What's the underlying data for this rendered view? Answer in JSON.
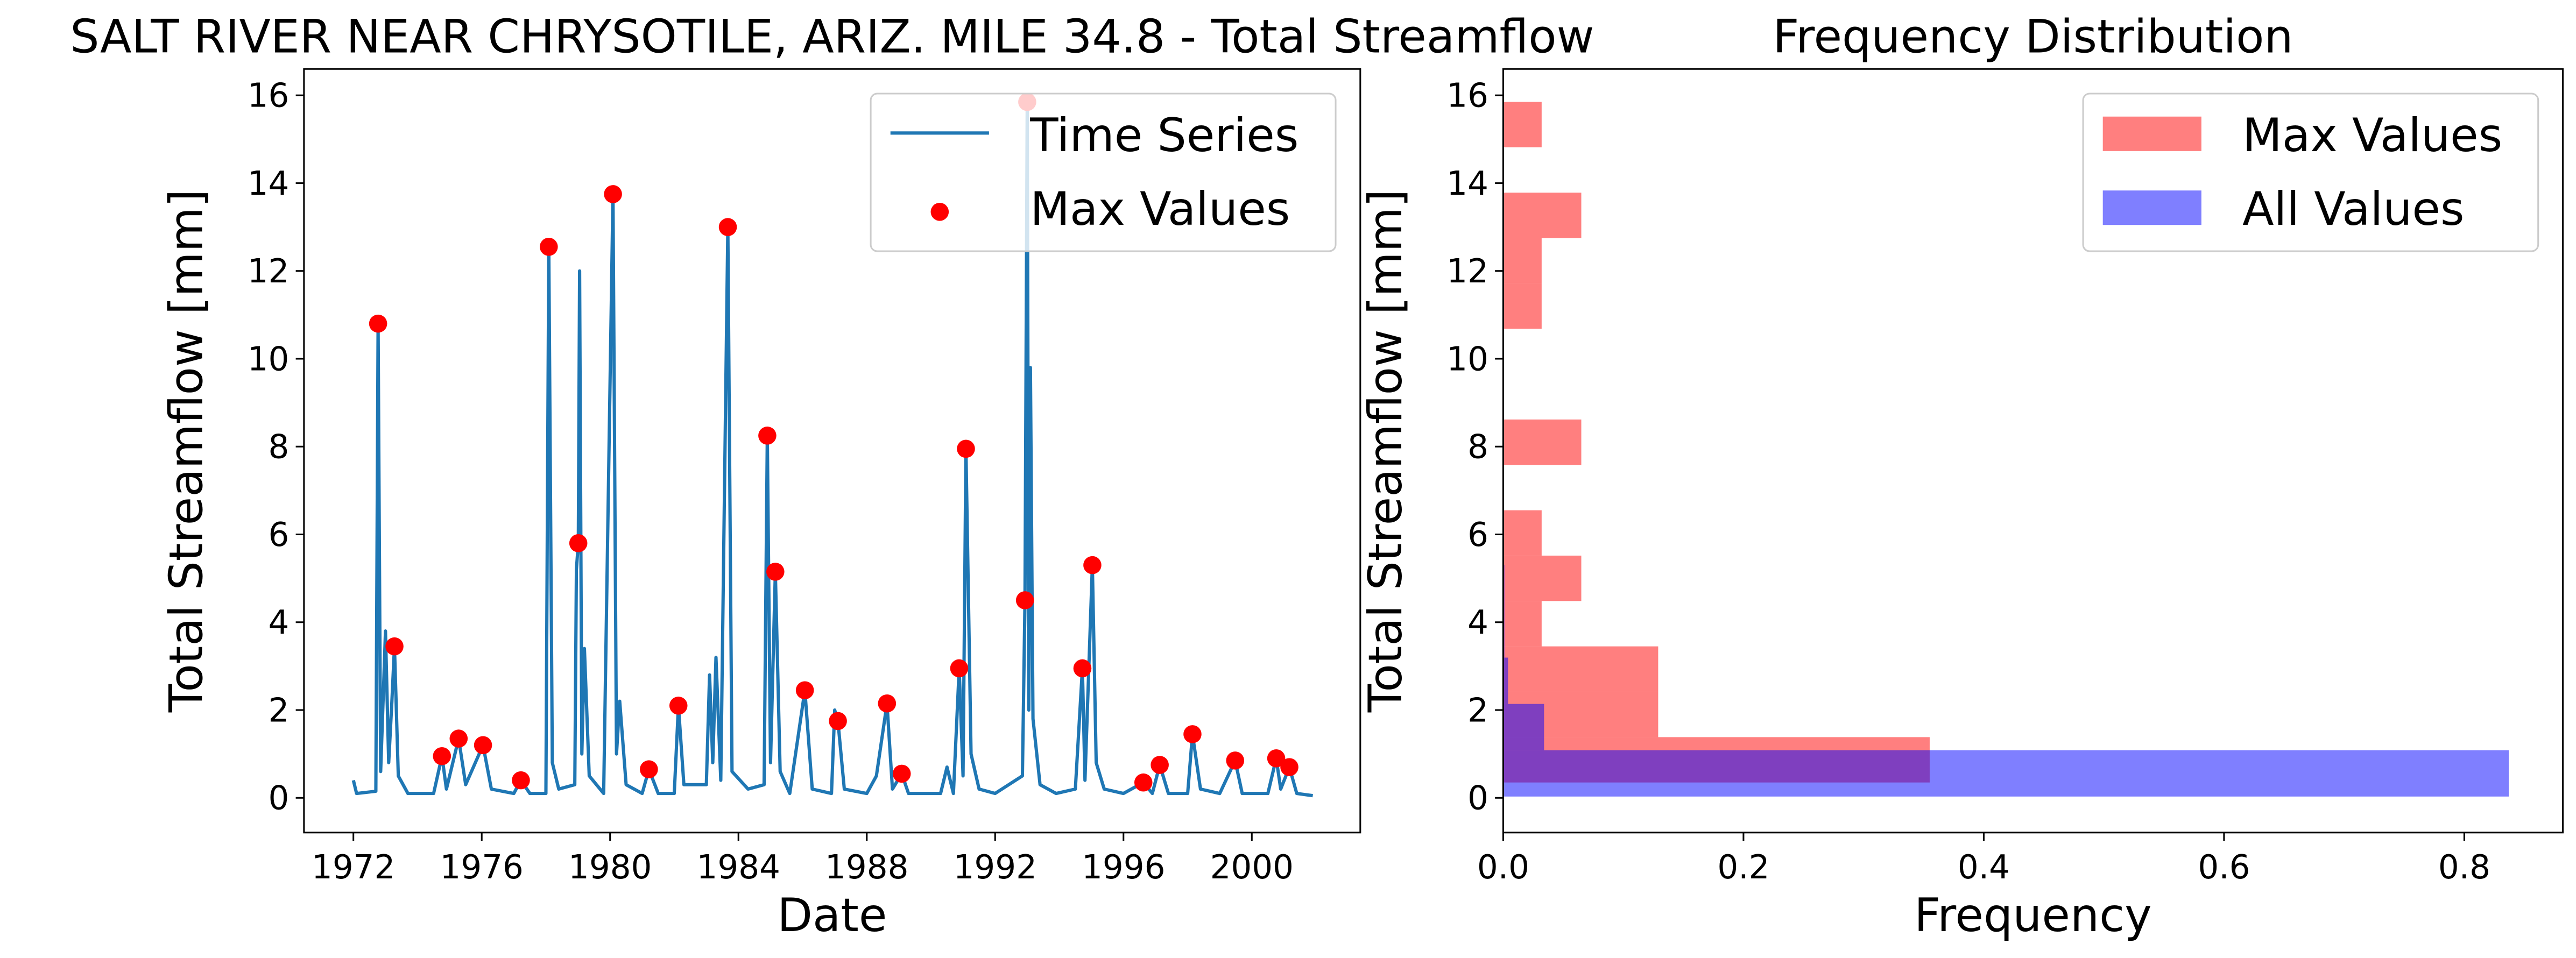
{
  "chart_data": [
    {
      "type": "line",
      "title": "SALT RIVER NEAR CHRYSOTILE, ARIZ. MILE 34.8 - Total Streamflow",
      "xlabel": "Date",
      "ylabel": "Total Streamflow [mm]",
      "xlim": [
        1970.46,
        2003.38
      ],
      "ylim": [
        -0.79,
        16.6
      ],
      "xticks": [
        1972,
        1976,
        1980,
        1984,
        1988,
        1992,
        1996,
        2000
      ],
      "yticks": [
        0,
        2,
        4,
        6,
        8,
        10,
        12,
        14,
        16
      ],
      "grid": false,
      "legend": "upper right",
      "series": [
        {
          "name": "Time Series",
          "type": "line",
          "color": "#1f77b4",
          "x": [
            1972.0,
            1972.1,
            1972.7,
            1972.77,
            1972.85,
            1973.0,
            1973.1,
            1973.2,
            1973.28,
            1973.4,
            1973.7,
            1974.5,
            1974.76,
            1974.9,
            1975.28,
            1975.5,
            1976.04,
            1976.3,
            1977.0,
            1977.22,
            1977.5,
            1978.0,
            1978.09,
            1978.2,
            1978.4,
            1978.9,
            1978.95,
            1979.01,
            1979.05,
            1979.12,
            1979.2,
            1979.35,
            1979.8,
            1980.09,
            1980.2,
            1980.3,
            1980.5,
            1981.0,
            1981.21,
            1981.5,
            1982.0,
            1982.13,
            1982.3,
            1983.0,
            1983.1,
            1983.2,
            1983.3,
            1983.45,
            1983.67,
            1983.8,
            1984.3,
            1984.8,
            1984.9,
            1985.0,
            1985.15,
            1985.3,
            1985.6,
            1986.07,
            1986.3,
            1986.9,
            1987.0,
            1987.1,
            1987.3,
            1988.0,
            1988.3,
            1988.63,
            1988.8,
            1989.09,
            1989.3,
            1990.3,
            1990.5,
            1990.7,
            1990.88,
            1991.0,
            1991.09,
            1991.25,
            1991.5,
            1992.0,
            1992.85,
            1992.93,
            1993.0,
            1993.05,
            1993.1,
            1993.18,
            1993.4,
            1993.9,
            1994.5,
            1994.72,
            1994.8,
            1995.03,
            1995.15,
            1995.4,
            1996.0,
            1996.62,
            1996.9,
            1997.13,
            1997.4,
            1998.0,
            1998.15,
            1998.4,
            1999.0,
            1999.48,
            1999.7,
            2000.5,
            2000.76,
            2000.9,
            2001.17,
            2001.4,
            2001.9
          ],
          "values": [
            0.4,
            0.1,
            0.15,
            10.8,
            0.6,
            3.8,
            0.8,
            2.2,
            3.45,
            0.5,
            0.1,
            0.1,
            0.95,
            0.2,
            1.35,
            0.3,
            1.2,
            0.2,
            0.1,
            0.4,
            0.1,
            0.1,
            12.55,
            0.8,
            0.2,
            0.3,
            5.2,
            5.8,
            12.0,
            1.0,
            3.4,
            0.5,
            0.1,
            13.75,
            1.0,
            2.2,
            0.3,
            0.1,
            0.65,
            0.1,
            0.1,
            2.1,
            0.3,
            0.3,
            2.8,
            0.8,
            3.2,
            0.4,
            13.0,
            0.6,
            0.2,
            0.3,
            8.25,
            0.8,
            5.15,
            0.6,
            0.1,
            2.45,
            0.2,
            0.1,
            2.0,
            1.75,
            0.2,
            0.1,
            0.5,
            2.15,
            0.2,
            0.55,
            0.1,
            0.1,
            0.7,
            0.1,
            2.95,
            0.5,
            7.95,
            1.0,
            0.2,
            0.1,
            0.5,
            4.5,
            15.85,
            2.0,
            9.8,
            1.8,
            0.3,
            0.1,
            0.2,
            2.95,
            0.4,
            5.3,
            0.8,
            0.2,
            0.1,
            0.35,
            0.1,
            0.75,
            0.1,
            0.1,
            1.45,
            0.2,
            0.1,
            0.85,
            0.1,
            0.1,
            0.9,
            0.2,
            0.7,
            0.1,
            0.05
          ]
        },
        {
          "name": "Max Values",
          "type": "scatter",
          "color": "#ff0000",
          "x": [
            1972.77,
            1973.28,
            1974.76,
            1975.28,
            1976.04,
            1977.22,
            1978.09,
            1979.01,
            1980.09,
            1981.21,
            1982.13,
            1983.67,
            1984.9,
            1985.15,
            1986.07,
            1987.1,
            1988.63,
            1989.09,
            1990.88,
            1991.09,
            1992.93,
            1993.0,
            1994.72,
            1995.03,
            1996.62,
            1997.13,
            1998.15,
            1999.48,
            2000.76,
            2001.17
          ],
          "values": [
            10.8,
            3.45,
            0.95,
            1.35,
            1.2,
            0.4,
            12.55,
            5.8,
            13.75,
            0.65,
            2.1,
            13.0,
            8.25,
            5.15,
            2.45,
            1.75,
            2.15,
            0.55,
            2.95,
            7.95,
            4.5,
            15.85,
            2.95,
            5.3,
            0.35,
            0.75,
            1.45,
            0.85,
            0.9,
            0.7
          ]
        }
      ]
    },
    {
      "type": "histogram",
      "orientation": "horizontal",
      "title": "Frequency Distribution",
      "xlabel": "Frequency",
      "ylabel": "Total Streamflow [mm]",
      "xlim": [
        0,
        0.882
      ],
      "ylim": [
        -0.79,
        16.6
      ],
      "xticks": [
        {
          "value": 0,
          "label": "0.0"
        },
        0.2,
        0.4,
        0.6,
        0.8
      ],
      "yticks": [
        0,
        2,
        4,
        6,
        8,
        10,
        12,
        14,
        16
      ],
      "grid": false,
      "legend": "upper right",
      "series": [
        {
          "name": "Max Values",
          "color": "#ff0000",
          "opacity": 0.5,
          "bins": [
            0.35,
            1.383,
            2.417,
            3.45,
            4.483,
            5.517,
            6.55,
            7.583,
            8.617,
            9.65,
            10.683,
            11.717,
            12.75,
            13.783,
            14.817,
            15.85
          ],
          "values": [
            0.355,
            0.129,
            0.129,
            0.032,
            0.065,
            0.032,
            0,
            0.065,
            0,
            0,
            0.032,
            0.032,
            0.065,
            0,
            0.032
          ]
        },
        {
          "name": "All Values",
          "color": "#0000ff",
          "opacity": 0.5,
          "bins": [
            0.03,
            1.085,
            2.139,
            3.194,
            4.249,
            5.303,
            6.358,
            7.413,
            8.467,
            9.522,
            10.577,
            11.631,
            12.686,
            13.741,
            14.795,
            15.85
          ],
          "values": [
            0.837,
            0.034,
            0.004,
            0.001,
            0.001,
            0.0005,
            0.0003,
            0.0003,
            0.0002,
            0.0001,
            0.0001,
            0.0001,
            0.0001,
            0.0001,
            0.0001
          ]
        }
      ]
    }
  ]
}
